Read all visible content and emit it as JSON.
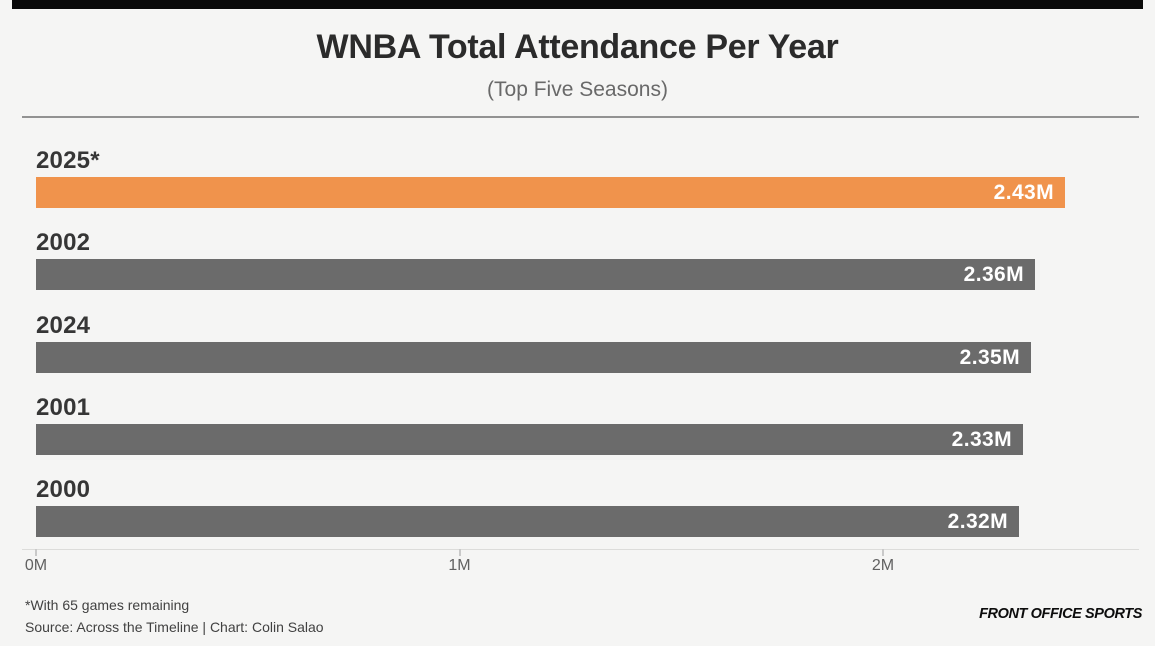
{
  "page": {
    "title": "WNBA Total Attendance Per Year",
    "subtitle": "(Top Five Seasons)",
    "footnote": "*With 65 games remaining",
    "source_line": "Source: Across the Timeline | Chart: Colin Salao",
    "brand": "FRONT OFFICE SPORTS"
  },
  "colors": {
    "background": "#f5f5f4",
    "highlight_bar": "#f0934c",
    "default_bar": "#6b6b6b",
    "value_text": "#ffffff",
    "top_rule": "#0a0a0a"
  },
  "chart_data": {
    "type": "bar",
    "orientation": "horizontal",
    "title": "WNBA Total Attendance Per Year",
    "subtitle": "(Top Five Seasons)",
    "categories": [
      "2025*",
      "2002",
      "2024",
      "2001",
      "2000"
    ],
    "values": [
      2.43,
      2.36,
      2.35,
      2.33,
      2.32
    ],
    "value_labels": [
      "2.43M",
      "2.36M",
      "2.35M",
      "2.33M",
      "2.32M"
    ],
    "unit": "millions of attendees",
    "x_ticks": [
      0,
      1,
      2
    ],
    "x_tick_labels": [
      "0M",
      "1M",
      "2M"
    ],
    "xlim": [
      0,
      2.64
    ],
    "grid": false,
    "legend": "none",
    "highlight_index": 0,
    "bar_colors": [
      "#f0934c",
      "#6b6b6b",
      "#6b6b6b",
      "#6b6b6b",
      "#6b6b6b"
    ],
    "annotations": [
      "*With 65 games remaining"
    ],
    "source": "Source: Across the Timeline | Chart: Colin Salao"
  }
}
